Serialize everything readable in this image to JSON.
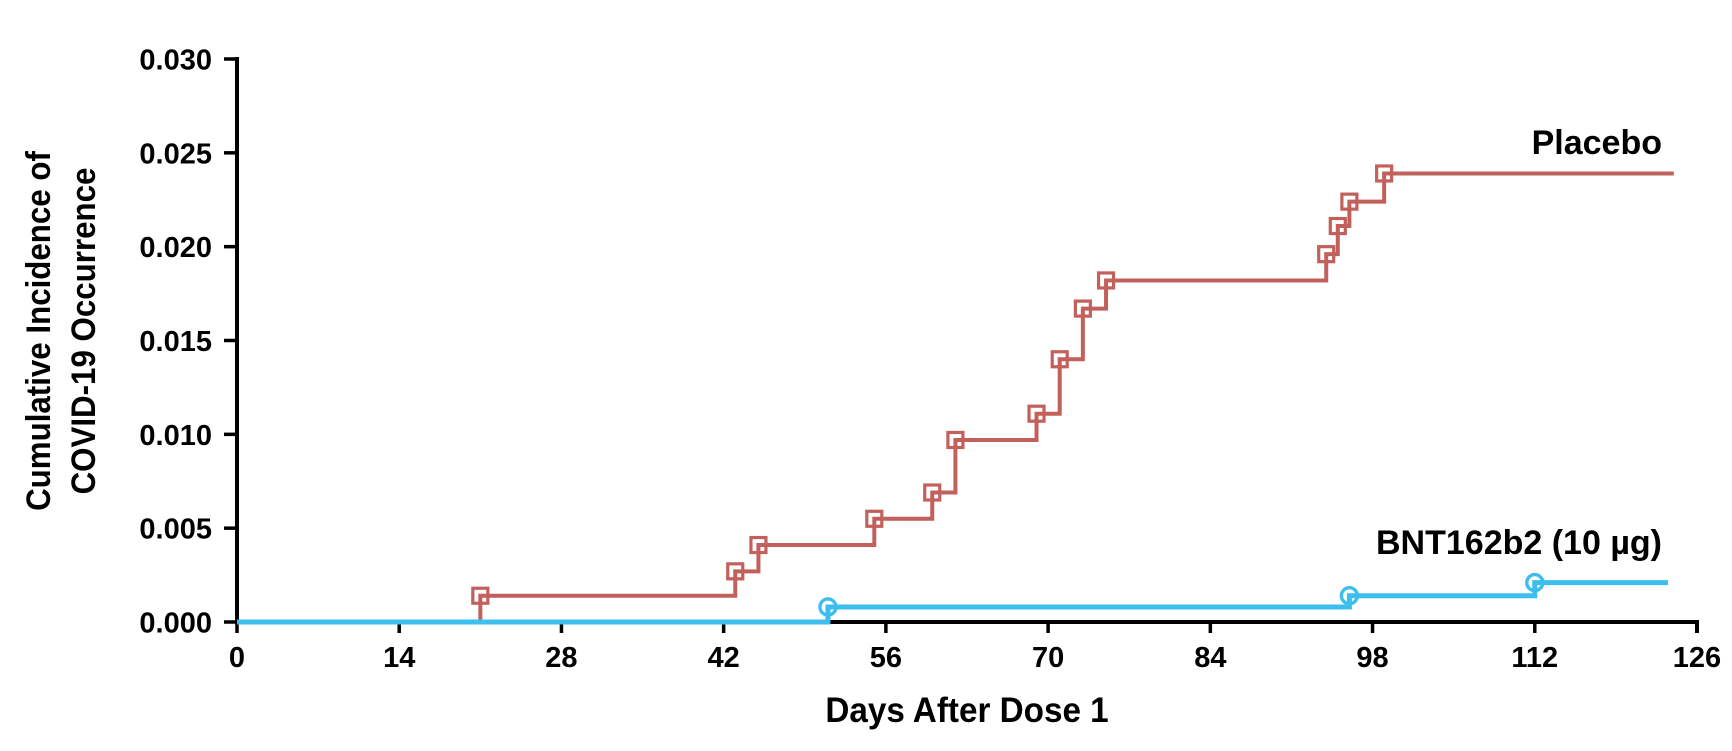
{
  "chart_data": {
    "type": "line",
    "subtype": "kaplan-meier-step",
    "title": "",
    "xlabel": "Days After Dose 1",
    "ylabel_lines": [
      "Cumulative Incidence of",
      "COVID-19 Occurrence"
    ],
    "xlim": [
      0,
      126
    ],
    "ylim": [
      0,
      0.03
    ],
    "xticks": [
      0,
      14,
      28,
      42,
      56,
      70,
      84,
      98,
      112,
      126
    ],
    "yticks": [
      {
        "value": 0.0,
        "label": "0.000"
      },
      {
        "value": 0.005,
        "label": "0.005"
      },
      {
        "value": 0.01,
        "label": "0.010"
      },
      {
        "value": 0.015,
        "label": "0.015"
      },
      {
        "value": 0.02,
        "label": "0.020"
      },
      {
        "value": 0.025,
        "label": "0.025"
      },
      {
        "value": 0.03,
        "label": "0.030"
      }
    ],
    "grid": false,
    "legend_position": "inline-right-labels",
    "axis_color": "#000000",
    "series": [
      {
        "id": "placebo",
        "name": "Placebo",
        "color": "#c2605c",
        "marker": "square",
        "line_width": 4,
        "start": [
          0,
          0
        ],
        "points": [
          [
            21,
            0.0014
          ],
          [
            43,
            0.0027
          ],
          [
            45,
            0.0041
          ],
          [
            55,
            0.0055
          ],
          [
            60,
            0.0069
          ],
          [
            62,
            0.0097
          ],
          [
            69,
            0.0111
          ],
          [
            71,
            0.014
          ],
          [
            73,
            0.0167
          ],
          [
            75,
            0.0182
          ],
          [
            94,
            0.0196
          ],
          [
            95,
            0.0211
          ],
          [
            96,
            0.0224
          ],
          [
            99,
            0.0239
          ]
        ],
        "end_day": 124
      },
      {
        "id": "bnt162b2",
        "name": "BNT162b2 (10 µg)",
        "color": "#3cbeee",
        "marker": "circle",
        "line_width": 5,
        "start": [
          0,
          0
        ],
        "points": [
          [
            51,
            0.0008
          ],
          [
            96,
            0.0014
          ],
          [
            112,
            0.0021
          ]
        ],
        "end_day": 123.5
      }
    ]
  }
}
